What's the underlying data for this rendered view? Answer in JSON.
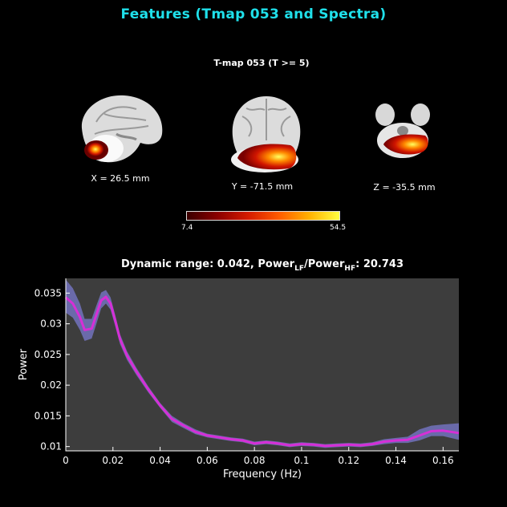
{
  "page": {
    "title": "Features (Tmap 053 and Spectra)"
  },
  "tmap": {
    "title": "T-map 053 (T >= 5)",
    "sagittal_label": "X = 26.5 mm",
    "coronal_label": "Y = -71.5 mm",
    "axial_label": "Z = -35.5 mm",
    "colorbar": {
      "min_label": "7.4",
      "max_label": "54.5",
      "colormap": [
        "#3a0000",
        "#8a0000",
        "#d41a00",
        "#ff5a00",
        "#ffb000",
        "#ffff40"
      ]
    }
  },
  "spectrum": {
    "title_prefix": "Dynamic range: 0.042, Power",
    "sub_lf": "LF",
    "title_slash": "/Power",
    "sub_hf": "HF",
    "title_suffix": ": 20.743"
  },
  "chart_data": {
    "type": "line",
    "xlabel": "Frequency (Hz)",
    "ylabel": "Power",
    "xlim": [
      0,
      0.1667
    ],
    "ylim": [
      0.0093,
      0.0374
    ],
    "xticks": [
      0,
      0.02,
      0.04,
      0.06,
      0.08,
      0.1,
      0.12,
      0.14,
      0.16
    ],
    "xtick_labels": [
      "0",
      "0.02",
      "0.04",
      "0.06",
      "0.08",
      "0.1",
      "0.12",
      "0.14",
      "0.16"
    ],
    "yticks": [
      0.01,
      0.015,
      0.02,
      0.025,
      0.03,
      0.035
    ],
    "ytick_labels": [
      "0.01",
      "0.015",
      "0.02",
      "0.025",
      "0.03",
      "0.035"
    ],
    "plot_background": "#3d3d3d",
    "line_color": "#d62fd6",
    "band_color": "#6a6aaa",
    "x": [
      0,
      0.003,
      0.006,
      0.008,
      0.011,
      0.013,
      0.015,
      0.017,
      0.019,
      0.021,
      0.023,
      0.026,
      0.03,
      0.035,
      0.04,
      0.045,
      0.05,
      0.055,
      0.06,
      0.065,
      0.07,
      0.075,
      0.08,
      0.085,
      0.09,
      0.095,
      0.1,
      0.105,
      0.11,
      0.115,
      0.12,
      0.125,
      0.13,
      0.135,
      0.14,
      0.145,
      0.15,
      0.155,
      0.16,
      0.1667
    ],
    "y": [
      0.0343,
      0.0333,
      0.0311,
      0.029,
      0.0292,
      0.0315,
      0.0338,
      0.0344,
      0.0333,
      0.0305,
      0.0275,
      0.0248,
      0.0222,
      0.0193,
      0.0167,
      0.0145,
      0.0134,
      0.0124,
      0.0118,
      0.0115,
      0.0112,
      0.011,
      0.0105,
      0.0107,
      0.0105,
      0.0102,
      0.0104,
      0.0103,
      0.0101,
      0.0102,
      0.0103,
      0.0102,
      0.0104,
      0.0108,
      0.011,
      0.0111,
      0.0118,
      0.0125,
      0.0126,
      0.0122
    ],
    "y_upper": [
      0.0372,
      0.0358,
      0.0333,
      0.0308,
      0.0308,
      0.033,
      0.0351,
      0.0355,
      0.0343,
      0.0314,
      0.0283,
      0.0255,
      0.0228,
      0.0198,
      0.0171,
      0.015,
      0.0138,
      0.0128,
      0.0121,
      0.0118,
      0.0115,
      0.0113,
      0.0108,
      0.011,
      0.0108,
      0.0105,
      0.0107,
      0.0106,
      0.0104,
      0.0105,
      0.0106,
      0.0105,
      0.0107,
      0.0112,
      0.0114,
      0.0116,
      0.0128,
      0.0134,
      0.0136,
      0.0138
    ],
    "y_lower": [
      0.0318,
      0.031,
      0.029,
      0.0272,
      0.0276,
      0.03,
      0.0325,
      0.0333,
      0.0323,
      0.0296,
      0.0267,
      0.0241,
      0.0216,
      0.0188,
      0.0163,
      0.014,
      0.013,
      0.012,
      0.0115,
      0.0112,
      0.0109,
      0.0107,
      0.0102,
      0.0104,
      0.0102,
      0.0099,
      0.0101,
      0.01,
      0.0098,
      0.0099,
      0.01,
      0.0099,
      0.0101,
      0.0104,
      0.0106,
      0.0106,
      0.011,
      0.0117,
      0.0117,
      0.0111
    ]
  }
}
